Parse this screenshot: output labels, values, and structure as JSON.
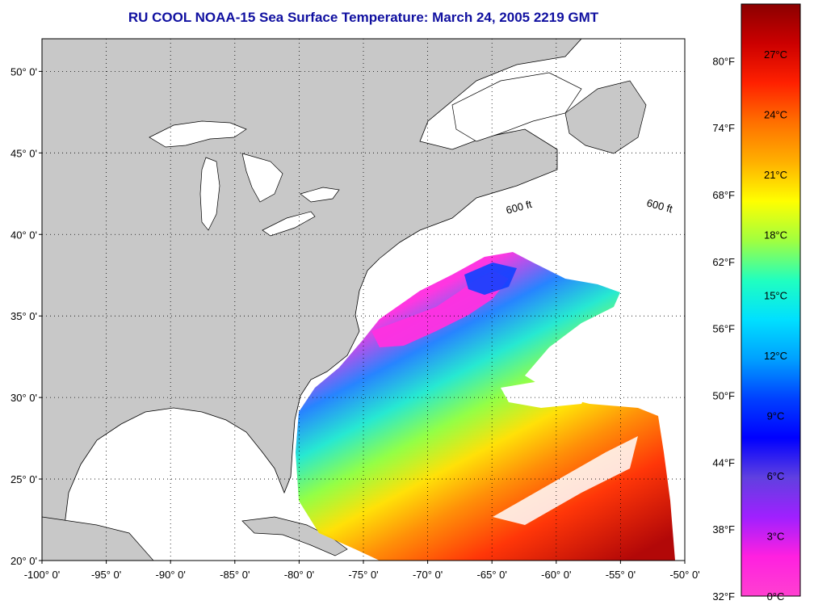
{
  "title": "RU COOL  NOAA-15  Sea Surface Temperature:  March 24, 2005 2219 GMT",
  "colors": {
    "title": "#1010a0",
    "land": "#c8c8c8",
    "ocean_nodata": "#ffffff",
    "frame": "#000000"
  },
  "map": {
    "lon_range": [
      -100,
      -50
    ],
    "lat_range": [
      20,
      52
    ],
    "lon_ticks": [
      {
        "value": -100,
        "label": "-100° 0'"
      },
      {
        "value": -95,
        "label": "-95° 0'"
      },
      {
        "value": -90,
        "label": "-90° 0'"
      },
      {
        "value": -85,
        "label": "-85° 0'"
      },
      {
        "value": -80,
        "label": "-80° 0'"
      },
      {
        "value": -75,
        "label": "-75° 0'"
      },
      {
        "value": -70,
        "label": "-70° 0'"
      },
      {
        "value": -65,
        "label": "-65° 0'"
      },
      {
        "value": -60,
        "label": "-60° 0'"
      },
      {
        "value": -55,
        "label": "-55° 0'"
      },
      {
        "value": -50,
        "label": "-50° 0'"
      }
    ],
    "lat_ticks": [
      {
        "value": 50,
        "label": "50° 0'"
      },
      {
        "value": 45,
        "label": "45° 0'"
      },
      {
        "value": 40,
        "label": "40° 0'"
      },
      {
        "value": 35,
        "label": "35° 0'"
      },
      {
        "value": 30,
        "label": "30° 0'"
      },
      {
        "value": 25,
        "label": "25° 0'"
      },
      {
        "value": 20,
        "label": "20° 0'"
      }
    ],
    "isobath_label": "600 ft",
    "grid": "dotted"
  },
  "colorbar": {
    "celsius_labels": [
      "27°C",
      "24°C",
      "21°C",
      "18°C",
      "15°C",
      "12°C",
      "9°C",
      "6°C",
      "3°C",
      "0°C"
    ],
    "fahrenheit_labels": [
      "80°F",
      "74°F",
      "68°F",
      "62°F",
      "56°F",
      "50°F",
      "44°F",
      "38°F",
      "32°F"
    ],
    "stops": [
      "#8b0000",
      "#cc0000",
      "#ff2000",
      "#ff7000",
      "#ffb000",
      "#ffff00",
      "#a0ff40",
      "#20ffc0",
      "#00e0ff",
      "#00a0ff",
      "#0040ff",
      "#0000ff",
      "#6040e0",
      "#a020ff",
      "#ff20e0",
      "#ff40d0"
    ]
  }
}
